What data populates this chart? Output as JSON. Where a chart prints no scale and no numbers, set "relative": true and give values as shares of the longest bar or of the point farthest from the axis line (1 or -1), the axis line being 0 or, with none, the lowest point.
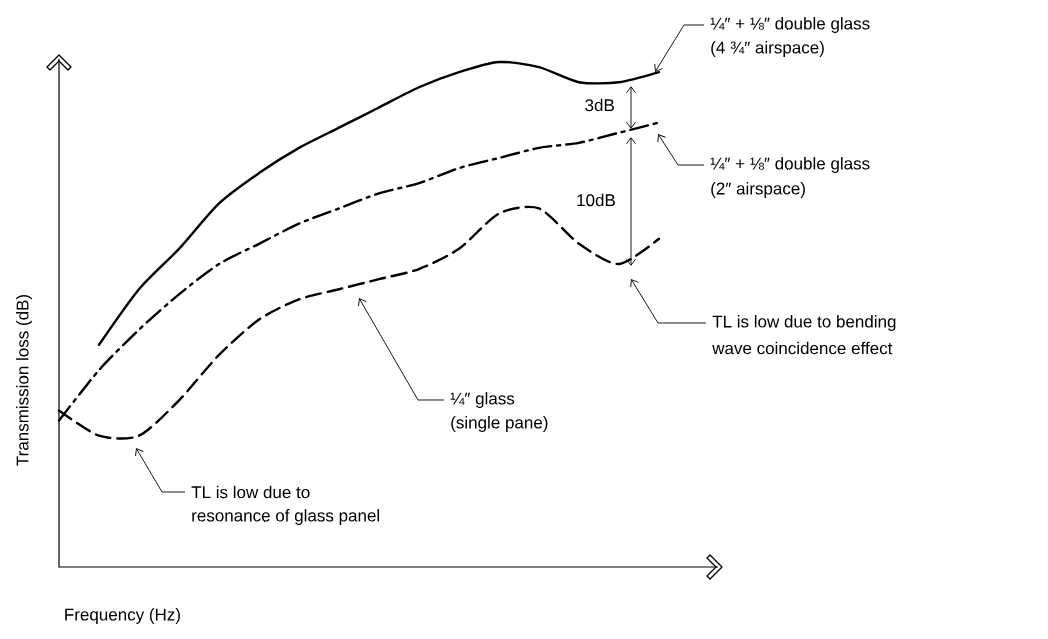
{
  "chart_data": {
    "type": "line",
    "relative": true,
    "xlabel": "Frequency (Hz)",
    "ylabel": "Transmission loss (dB)",
    "categories": [
      null,
      null,
      null,
      null,
      null,
      null,
      null,
      null,
      null,
      null,
      null,
      null,
      null,
      null,
      null,
      null
    ],
    "series": [
      {
        "color": "#000000",
        "line_style": "solid",
        "values": [
          null,
          0.44,
          0.55,
          0.63,
          0.72,
          0.78,
          0.83,
          0.87,
          0.91,
          0.95,
          0.98,
          1.0,
          0.99,
          0.96,
          0.96,
          0.98
        ]
      },
      {
        "color": "#000000",
        "line_style": "dashdot",
        "values": [
          0.29,
          0.39,
          0.47,
          0.54,
          0.6,
          0.64,
          0.68,
          0.71,
          0.74,
          0.76,
          0.79,
          0.81,
          0.83,
          0.84,
          0.86,
          0.88
        ]
      },
      {
        "color": "#000000",
        "line_style": "dashed",
        "values": [
          0.31,
          0.26,
          0.26,
          0.33,
          0.42,
          0.49,
          0.53,
          0.55,
          0.57,
          0.59,
          0.63,
          0.7,
          0.71,
          0.64,
          0.6,
          0.65
        ]
      }
    ],
    "annotations": [
      "¼″ + ⅛″ double glass",
      "(4 ¾″ airspace)",
      "¼″ + ⅛″ double glass",
      "(2″ airspace)",
      "TL is low due to bending",
      "wave coincidence effect",
      "¼″ glass",
      "(single pane)",
      "TL is low due to",
      "resonance of glass panel",
      "3dB",
      "10dB"
    ]
  }
}
